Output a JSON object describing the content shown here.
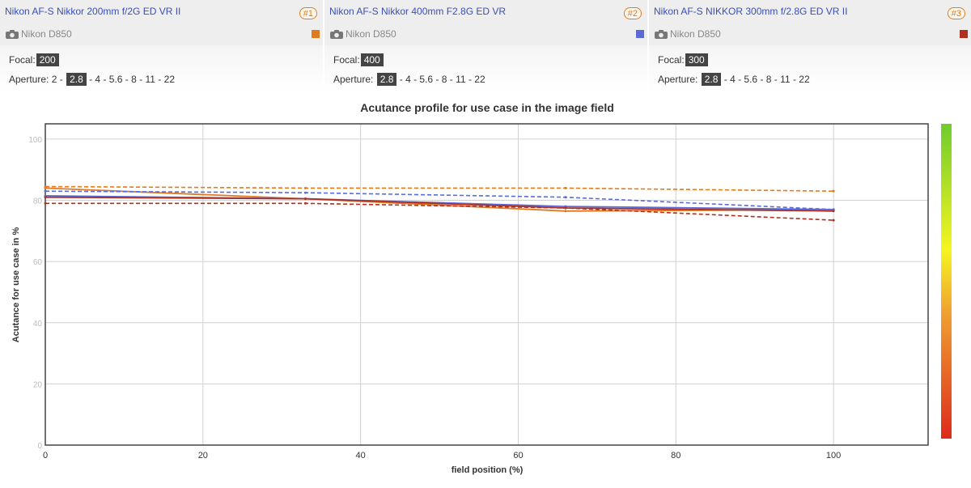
{
  "lenses": [
    {
      "name": "Nikon AF-S Nikkor 200mm f/2G ED VR II",
      "badge": "#1",
      "camera": "Nikon D850",
      "color": "#e07a20",
      "focal_label": "Focal:",
      "focal": "200",
      "aperture_label": "Aperture:",
      "apertures": [
        "2",
        "2.8",
        "4",
        "5.6",
        "8",
        "11",
        "22"
      ],
      "selected_aperture": "2.8"
    },
    {
      "name": "Nikon AF-S Nikkor 400mm F2.8G ED VR",
      "badge": "#2",
      "camera": "Nikon D850",
      "color": "#5a6bd8",
      "focal_label": "Focal:",
      "focal": "400",
      "aperture_label": "Aperture:",
      "apertures": [
        "2.8",
        "4",
        "5.6",
        "8",
        "11",
        "22"
      ],
      "selected_aperture": "2.8"
    },
    {
      "name": "Nikon AF-S NIKKOR 300mm f/2.8G ED VR II",
      "badge": "#3",
      "camera": "Nikon D850",
      "color": "#b03020",
      "focal_label": "Focal:",
      "focal": "300",
      "aperture_label": "Aperture:",
      "apertures": [
        "2.8",
        "4",
        "5.6",
        "8",
        "11",
        "22"
      ],
      "selected_aperture": "2.8"
    }
  ],
  "chart_data": {
    "type": "line",
    "title": "Acutance profile for use case in the image field",
    "xlabel": "field position (%)",
    "ylabel": "Acutance for use case in %",
    "xlim": [
      0,
      112
    ],
    "ylim": [
      0,
      105
    ],
    "xticks": [
      0,
      20,
      40,
      60,
      80,
      100
    ],
    "yticks": [
      0,
      20,
      40,
      60,
      80,
      100
    ],
    "grid": true,
    "colorbar": {
      "from": "#dd2b1c",
      "to": "#6fcc2c",
      "mid": [
        "#f0a030",
        "#f5f520"
      ]
    },
    "series": [
      {
        "lens": 0,
        "style": "solid",
        "color": "#e07a20",
        "x": [
          0,
          33,
          66,
          100
        ],
        "y": [
          84.0,
          80.5,
          76.5,
          77.0
        ]
      },
      {
        "lens": 0,
        "style": "dashed",
        "color": "#e07a20",
        "x": [
          0,
          33,
          66,
          100
        ],
        "y": [
          84.5,
          84.0,
          84.0,
          83.0
        ]
      },
      {
        "lens": 1,
        "style": "solid",
        "color": "#5a6bd8",
        "x": [
          0,
          33,
          66,
          100
        ],
        "y": [
          81.5,
          80.5,
          78.0,
          77.0
        ]
      },
      {
        "lens": 1,
        "style": "dashed",
        "color": "#5a6bd8",
        "x": [
          0,
          33,
          66,
          100
        ],
        "y": [
          83.0,
          82.5,
          81.0,
          77.0
        ]
      },
      {
        "lens": 2,
        "style": "solid",
        "color": "#b03020",
        "x": [
          0,
          33,
          66,
          100
        ],
        "y": [
          81.0,
          80.5,
          77.5,
          76.5
        ]
      },
      {
        "lens": 2,
        "style": "dashed",
        "color": "#b03020",
        "x": [
          0,
          33,
          66,
          100
        ],
        "y": [
          79.0,
          79.0,
          77.5,
          73.5
        ]
      }
    ]
  }
}
